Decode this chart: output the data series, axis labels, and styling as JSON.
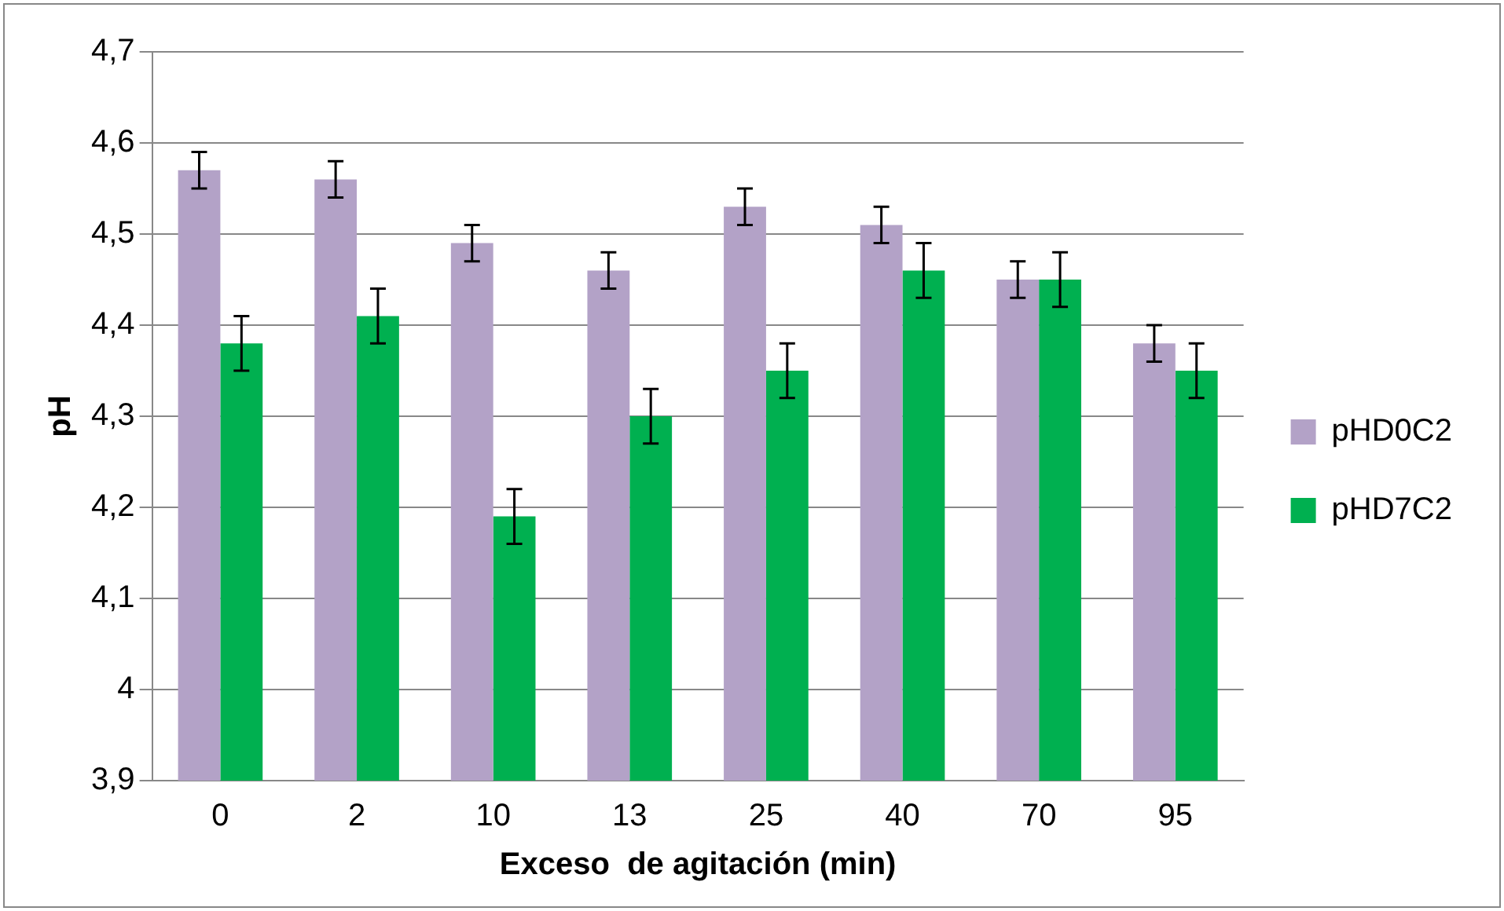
{
  "chart_data": {
    "type": "bar",
    "xlabel": "Exceso  de agitación (min)",
    "ylabel": "pH",
    "categories": [
      "0",
      "2",
      "10",
      "13",
      "25",
      "40",
      "70",
      "95"
    ],
    "series": [
      {
        "name": "pHD0C2",
        "color": "#b3a2c7",
        "values": [
          4.57,
          4.56,
          4.49,
          4.46,
          4.53,
          4.51,
          4.45,
          4.38
        ],
        "errors": [
          0.02,
          0.02,
          0.02,
          0.02,
          0.02,
          0.02,
          0.02,
          0.02
        ]
      },
      {
        "name": "pHD7C2",
        "color": "#00b050",
        "values": [
          4.38,
          4.41,
          4.19,
          4.3,
          4.35,
          4.46,
          4.45,
          4.35
        ],
        "errors": [
          0.03,
          0.03,
          0.03,
          0.03,
          0.03,
          0.03,
          0.03,
          0.03
        ]
      }
    ],
    "ylim": [
      3.9,
      4.7
    ],
    "yticks": [
      {
        "value": 3.9,
        "label": "3,9"
      },
      {
        "value": 4,
        "label": "4"
      },
      {
        "value": 4.1,
        "label": "4,1"
      },
      {
        "value": 4.2,
        "label": "4,2"
      },
      {
        "value": 4.3,
        "label": "4,3"
      },
      {
        "value": 4.4,
        "label": "4,4"
      },
      {
        "value": 4.5,
        "label": "4,5"
      },
      {
        "value": 4.6,
        "label": "4,6"
      },
      {
        "value": 4.7,
        "label": "4,7"
      }
    ],
    "grid": "y",
    "legend": "right"
  }
}
